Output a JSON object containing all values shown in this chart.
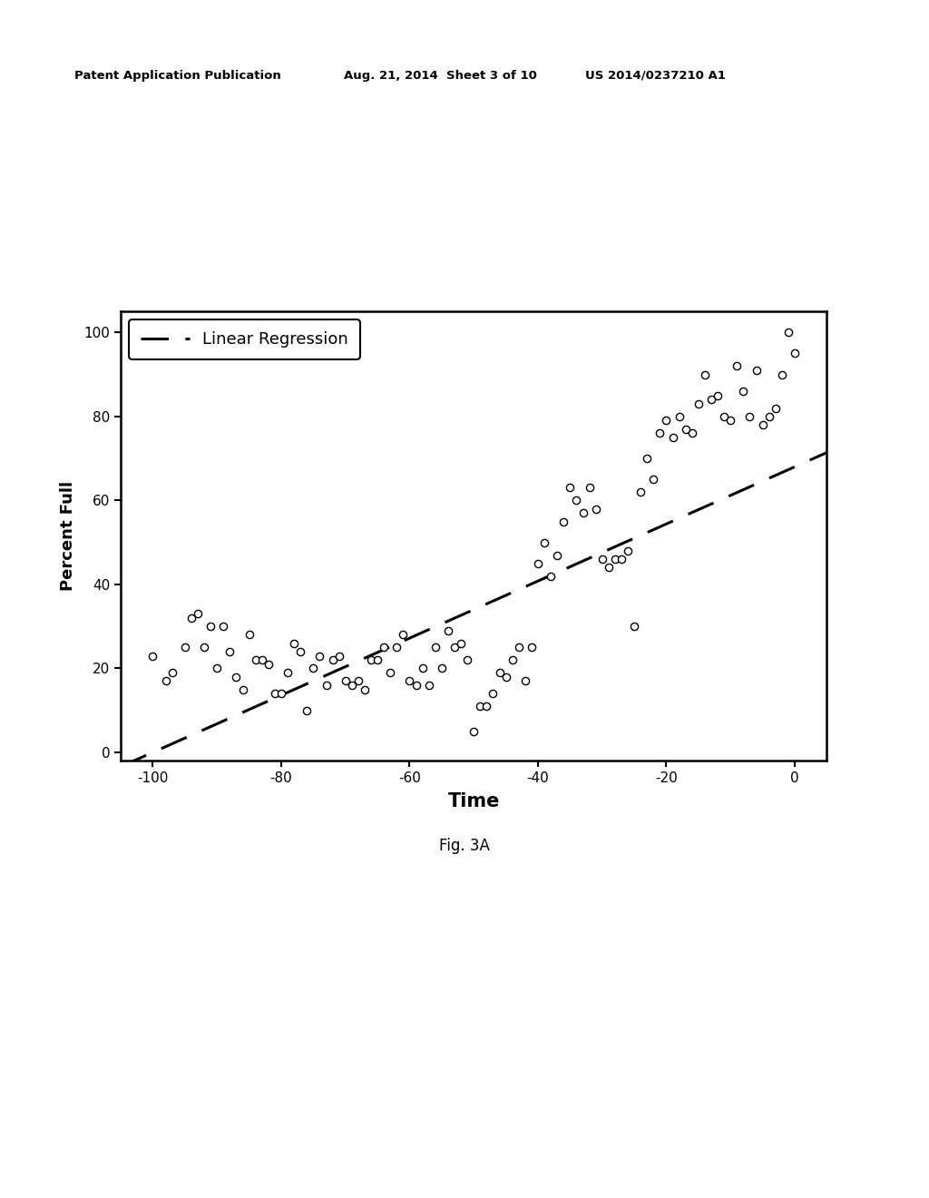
{
  "scatter_x": [
    -100,
    -98,
    -97,
    -95,
    -94,
    -93,
    -92,
    -91,
    -90,
    -89,
    -88,
    -87,
    -86,
    -85,
    -84,
    -83,
    -82,
    -81,
    -80,
    -79,
    -78,
    -77,
    -76,
    -75,
    -74,
    -73,
    -72,
    -71,
    -70,
    -69,
    -68,
    -67,
    -66,
    -65,
    -64,
    -63,
    -62,
    -61,
    -60,
    -59,
    -58,
    -57,
    -56,
    -55,
    -54,
    -53,
    -52,
    -51,
    -50,
    -49,
    -48,
    -47,
    -46,
    -45,
    -44,
    -43,
    -42,
    -41,
    -40,
    -39,
    -38,
    -37,
    -36,
    -35,
    -34,
    -33,
    -32,
    -31,
    -30,
    -29,
    -28,
    -27,
    -26,
    -25,
    -24,
    -23,
    -22,
    -21,
    -20,
    -19,
    -18,
    -17,
    -16,
    -15,
    -14,
    -13,
    -12,
    -11,
    -10,
    -9,
    -8,
    -7,
    -6,
    -5,
    -4,
    -3,
    -2,
    -1,
    0
  ],
  "scatter_y": [
    23,
    17,
    19,
    25,
    32,
    33,
    25,
    30,
    20,
    30,
    24,
    18,
    15,
    28,
    22,
    22,
    21,
    14,
    14,
    19,
    26,
    24,
    10,
    20,
    23,
    16,
    22,
    23,
    17,
    16,
    17,
    15,
    22,
    22,
    25,
    19,
    25,
    28,
    17,
    16,
    20,
    16,
    25,
    20,
    29,
    25,
    26,
    22,
    5,
    11,
    11,
    14,
    19,
    18,
    22,
    25,
    17,
    25,
    45,
    50,
    42,
    47,
    55,
    63,
    60,
    57,
    63,
    58,
    46,
    44,
    46,
    46,
    48,
    30,
    62,
    70,
    65,
    76,
    79,
    75,
    80,
    77,
    76,
    83,
    90,
    84,
    85,
    80,
    79,
    92,
    86,
    80,
    91,
    78,
    80,
    82,
    90,
    100,
    95
  ],
  "regression_x_start": -105,
  "regression_x_end": 5,
  "regression_slope": 0.68,
  "regression_intercept": 68.0,
  "xlim": [
    -105,
    5
  ],
  "ylim": [
    -2,
    105
  ],
  "xticks": [
    -100,
    -80,
    -60,
    -40,
    -20,
    0
  ],
  "yticks": [
    0,
    20,
    40,
    60,
    80,
    100
  ],
  "xlabel": "Time",
  "ylabel": "Percent Full",
  "legend_label": "Linear Regression",
  "fig_label": "Fig. 3A",
  "header_left": "Patent Application Publication",
  "header_mid": "Aug. 21, 2014  Sheet 3 of 10",
  "header_right": "US 2014/0237210 A1",
  "scatter_color": "black",
  "scatter_facecolor": "white",
  "scatter_size": 35,
  "line_color": "black",
  "line_width": 2.2,
  "background_color": "white",
  "axis_linewidth": 1.8
}
